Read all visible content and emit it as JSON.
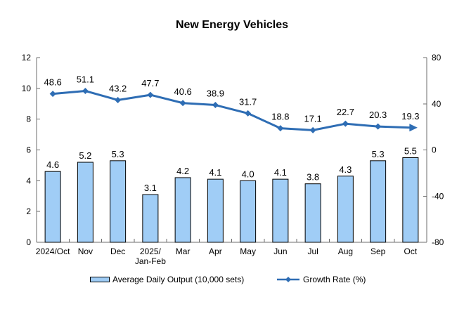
{
  "chart": {
    "title": "New Energy Vehicles"
  },
  "chart_data": {
    "type": "bar+line",
    "title": "New Energy Vehicles",
    "categories": [
      "2024/Oct",
      "Nov",
      "Dec",
      "2025/\nJan-Feb",
      "Mar",
      "Apr",
      "May",
      "Jun",
      "Jul",
      "Aug",
      "Sep",
      "Oct"
    ],
    "series": [
      {
        "name": "Average Daily Output (10,000 sets)",
        "type": "bar",
        "axis": "left",
        "values": [
          4.6,
          5.2,
          5.3,
          3.1,
          4.2,
          4.1,
          4.0,
          4.1,
          3.8,
          4.3,
          5.3,
          5.5
        ],
        "labels": [
          "4.6",
          "5.2",
          "5.3",
          "3.1",
          "4.2",
          "4.1",
          "4.0",
          "4.1",
          "3.8",
          "4.3",
          "5.3",
          "5.5"
        ]
      },
      {
        "name": "Growth Rate (%)",
        "type": "line",
        "axis": "right",
        "values": [
          48.6,
          51.1,
          43.2,
          47.7,
          40.6,
          38.9,
          31.7,
          18.8,
          17.1,
          22.7,
          20.3,
          19.3
        ],
        "labels": [
          "48.6",
          "51.1",
          "43.2",
          "47.7",
          "40.6",
          "38.9",
          "31.7",
          "18.8",
          "17.1",
          "22.7",
          "20.3",
          "19.3"
        ]
      }
    ],
    "left_axis": {
      "min": 0,
      "max": 12,
      "ticks": [
        0,
        2,
        4,
        6,
        8,
        10,
        12
      ],
      "tick_labels": [
        "0",
        "2",
        "4",
        "6",
        "8",
        "10",
        "12"
      ]
    },
    "right_axis": {
      "min": -80,
      "max": 80,
      "ticks": [
        -80,
        -40,
        0,
        40,
        80
      ],
      "tick_labels": [
        "-80",
        "-40",
        "0",
        "40",
        "80"
      ]
    },
    "legend_position": "bottom",
    "grid": false,
    "colors": {
      "bar_fill": "#A0CDF6",
      "bar_border": "#000000",
      "line": "#2E6DB4",
      "axis": "#6E6E6E",
      "text": "#000000"
    }
  }
}
